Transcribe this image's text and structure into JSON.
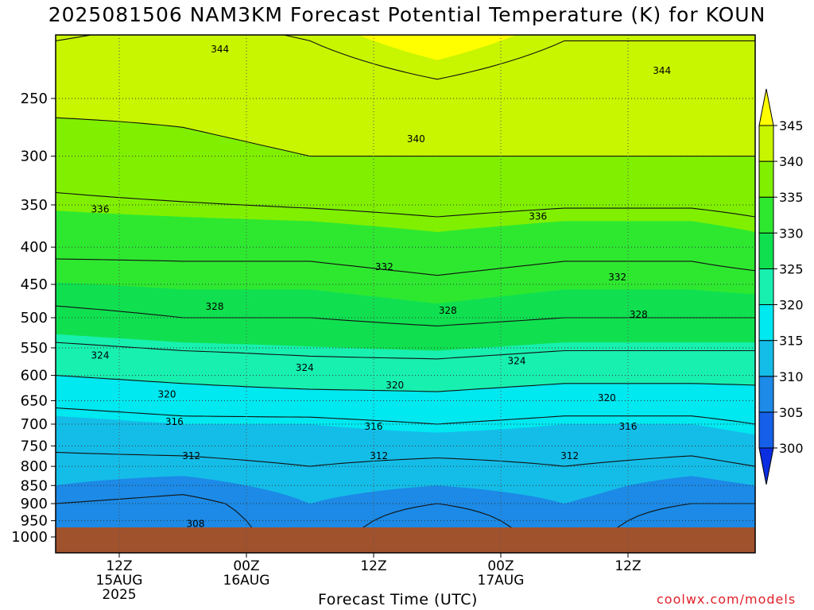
{
  "chart_data": {
    "type": "heatmap",
    "title": "2025081506 NAM3KM Forecast Potential Temperature (K) for KOUN",
    "xlabel": "Forecast Time (UTC)",
    "ylabel": "",
    "credit": "coolwx.com/models",
    "y_scale": "log-pressure",
    "y_ticks": [
      250,
      300,
      350,
      400,
      450,
      500,
      550,
      600,
      650,
      700,
      750,
      800,
      850,
      900,
      950,
      1000
    ],
    "ylim": [
      1000,
      200
    ],
    "x_ticks": [
      {
        "hour": 12,
        "label": [
          "12Z",
          "15AUG",
          "2025"
        ]
      },
      {
        "hour": 24,
        "label": [
          "00Z",
          "16AUG"
        ]
      },
      {
        "hour": 36,
        "label": [
          "12Z"
        ]
      },
      {
        "hour": 48,
        "label": [
          "00Z",
          "17AUG"
        ]
      },
      {
        "hour": 60,
        "label": [
          "12Z"
        ]
      }
    ],
    "xlim_hours_from_06Z_15AUG": [
      0,
      66
    ],
    "grid": true,
    "ground_level_hPa": 972,
    "colorbar": {
      "levels": [
        300,
        305,
        310,
        315,
        320,
        325,
        330,
        335,
        340,
        345
      ],
      "colors": [
        "#0a2ee0",
        "#1660e8",
        "#1c8ae6",
        "#14bde8",
        "#00e8f0",
        "#18f0b0",
        "#10e050",
        "#2ee830",
        "#80f000",
        "#c8f500",
        "#ffff00"
      ],
      "extend": "both"
    },
    "contour_levels": [
      308,
      312,
      316,
      320,
      324,
      328,
      332,
      336,
      340,
      344
    ],
    "contour_labels": [
      {
        "value": "344",
        "hour": 15.5,
        "hPa": 214
      },
      {
        "value": "344",
        "hour": 57.2,
        "hPa": 229
      },
      {
        "value": "340",
        "hour": 34.0,
        "hPa": 284
      },
      {
        "value": "336",
        "hour": 4.2,
        "hPa": 355
      },
      {
        "value": "336",
        "hour": 45.5,
        "hPa": 363
      },
      {
        "value": "332",
        "hour": 31.0,
        "hPa": 426
      },
      {
        "value": "332",
        "hour": 53.0,
        "hPa": 440
      },
      {
        "value": "328",
        "hour": 15.0,
        "hPa": 483
      },
      {
        "value": "328",
        "hour": 37.0,
        "hPa": 489
      },
      {
        "value": "328",
        "hour": 55.0,
        "hPa": 495
      },
      {
        "value": "324",
        "hour": 4.2,
        "hPa": 563
      },
      {
        "value": "324",
        "hour": 23.5,
        "hPa": 586
      },
      {
        "value": "324",
        "hour": 43.5,
        "hPa": 573
      },
      {
        "value": "320",
        "hour": 10.5,
        "hPa": 637
      },
      {
        "value": "320",
        "hour": 32.0,
        "hPa": 619
      },
      {
        "value": "320",
        "hour": 52.0,
        "hPa": 644
      },
      {
        "value": "316",
        "hour": 11.2,
        "hPa": 695
      },
      {
        "value": "316",
        "hour": 30.0,
        "hPa": 705
      },
      {
        "value": "316",
        "hour": 54.0,
        "hPa": 705
      },
      {
        "value": "312",
        "hour": 12.8,
        "hPa": 774
      },
      {
        "value": "312",
        "hour": 30.5,
        "hPa": 774
      },
      {
        "value": "312",
        "hour": 48.5,
        "hPa": 774
      },
      {
        "value": "308",
        "hour": 13.2,
        "hPa": 960
      }
    ],
    "potential_temperature_K_at_level": [
      {
        "hPa": 950,
        "hour_0": 306,
        "hour_12": 306,
        "hour_24": 310,
        "hour_36": 306,
        "hour_48": 310,
        "hour_60": 306,
        "hour_66": 306
      },
      {
        "hPa": 900,
        "hour_0": 308,
        "hour_12": 307,
        "hour_24": 310,
        "hour_36": 308,
        "hour_48": 310,
        "hour_60": 308,
        "hour_66": 308
      },
      {
        "hPa": 850,
        "hour_0": 310,
        "hour_12": 309,
        "hour_24": 311,
        "hour_36": 310,
        "hour_48": 311,
        "hour_60": 309,
        "hour_66": 310
      },
      {
        "hPa": 800,
        "hour_0": 311,
        "hour_12": 311,
        "hour_24": 312,
        "hour_36": 311,
        "hour_48": 312,
        "hour_60": 311,
        "hour_66": 312
      },
      {
        "hPa": 700,
        "hour_0": 314,
        "hour_12": 315,
        "hour_24": 315,
        "hour_36": 316,
        "hour_48": 315,
        "hour_60": 315,
        "hour_66": 316
      },
      {
        "hPa": 600,
        "hour_0": 320,
        "hour_12": 321,
        "hour_24": 322,
        "hour_36": 322,
        "hour_48": 321,
        "hour_60": 321,
        "hour_66": 321
      },
      {
        "hPa": 500,
        "hour_0": 327,
        "hour_12": 328,
        "hour_24": 328,
        "hour_36": 329,
        "hour_48": 328,
        "hour_60": 328,
        "hour_66": 328
      },
      {
        "hPa": 400,
        "hour_0": 333,
        "hour_12": 333,
        "hour_24": 333,
        "hour_36": 334,
        "hour_48": 333,
        "hour_60": 333,
        "hour_66": 334
      },
      {
        "hPa": 300,
        "hour_0": 338,
        "hour_12": 339,
        "hour_24": 340,
        "hour_36": 340,
        "hour_48": 340,
        "hour_60": 340,
        "hour_66": 340
      },
      {
        "hPa": 250,
        "hour_0": 341,
        "hour_12": 341,
        "hour_24": 342,
        "hour_36": 343,
        "hour_48": 342,
        "hour_60": 342,
        "hour_66": 342
      }
    ]
  }
}
